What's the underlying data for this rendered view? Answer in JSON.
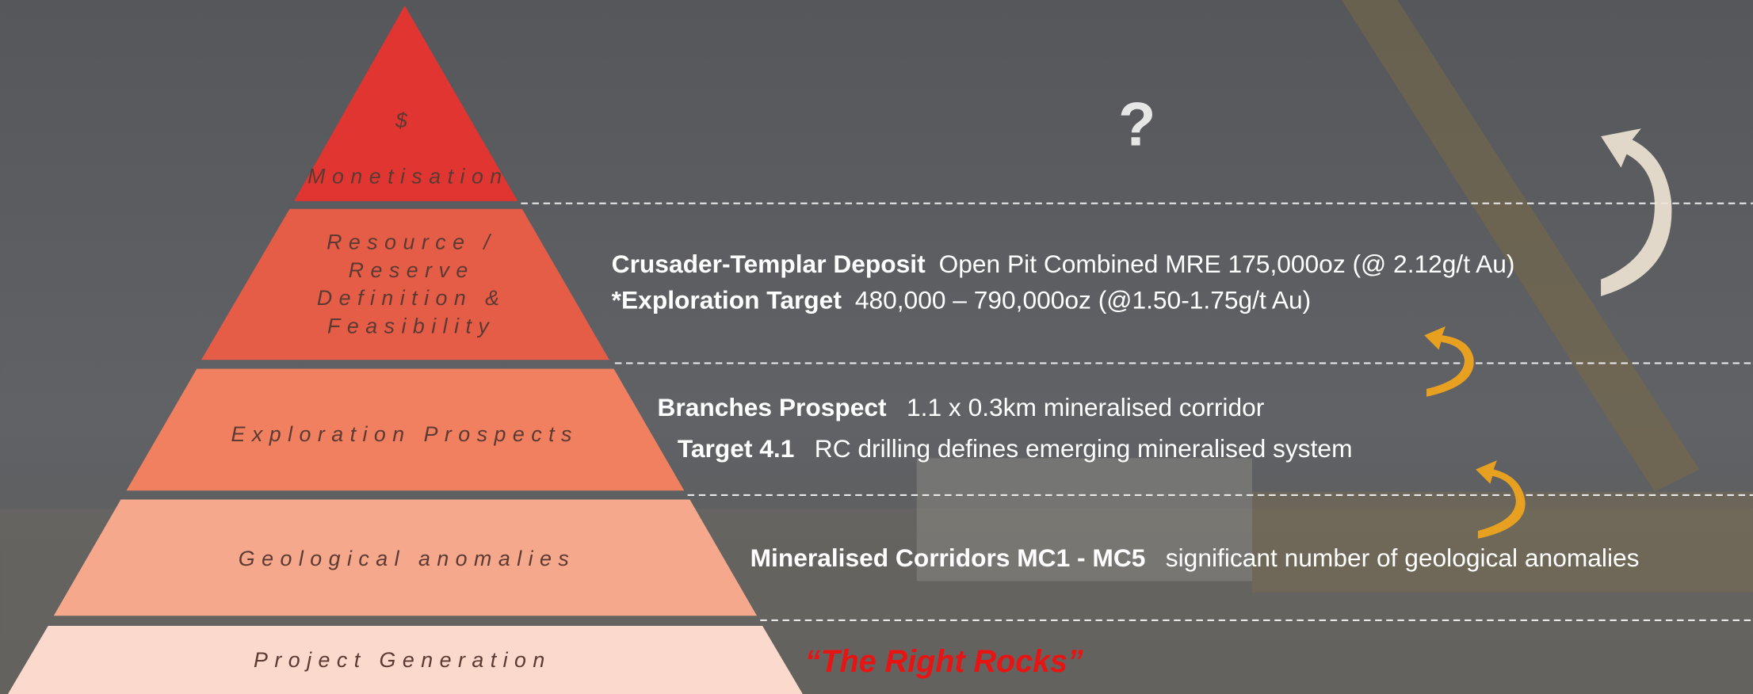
{
  "pyramid": [
    {
      "lines": [
        "$",
        "Monetisation"
      ]
    },
    {
      "lines": [
        "Resource /",
        "Reserve",
        "Definition &",
        "Feasibility"
      ]
    },
    {
      "lines": [
        "Exploration Prospects"
      ]
    },
    {
      "lines": [
        "Geological anomalies"
      ]
    },
    {
      "lines": [
        "Project Generation"
      ]
    }
  ],
  "descriptions": {
    "monetisation": "?",
    "resource": [
      {
        "bold": "Crusader-Templar Deposit",
        "text": "Open Pit Combined MRE 175,000oz (@ 2.12g/t Au)"
      },
      {
        "bold": "*Exploration Target",
        "text": "480,000 – 790,000oz (@1.50-1.75g/t Au)"
      }
    ],
    "exploration": [
      {
        "bold": "Branches Prospect",
        "text": "1.1 x 0.3km mineralised corridor"
      },
      {
        "bold": "Target 4.1",
        "text": "RC drilling defines emerging mineralised system"
      }
    ],
    "geological": [
      {
        "bold": "Mineralised Corridors MC1 - MC5",
        "text": "significant number of geological anomalies"
      }
    ],
    "project_generation": "“The Right Rocks”"
  }
}
